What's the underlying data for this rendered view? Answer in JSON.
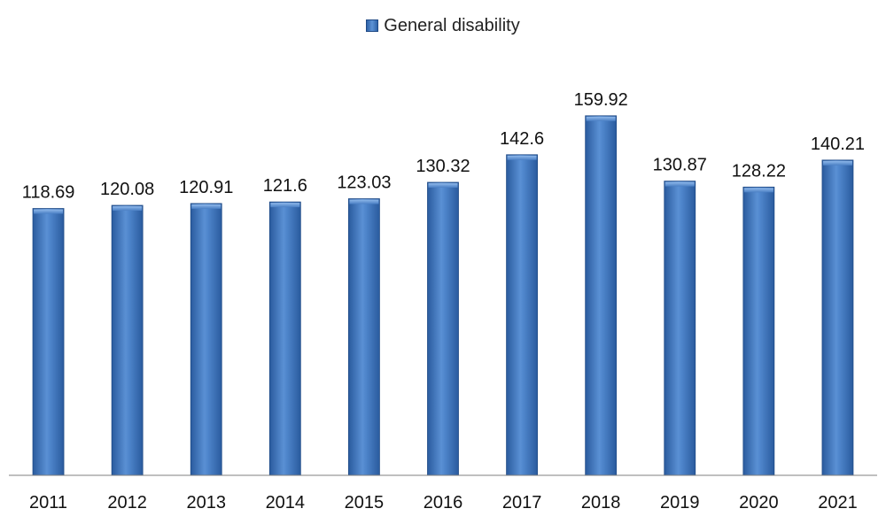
{
  "chart_data": {
    "type": "bar",
    "categories": [
      "2011",
      "2012",
      "2013",
      "2014",
      "2015",
      "2016",
      "2017",
      "2018",
      "2019",
      "2020",
      "2021"
    ],
    "series": [
      {
        "name": "General disability",
        "values": [
          118.69,
          120.08,
          120.91,
          121.6,
          123.03,
          130.32,
          142.6,
          159.92,
          130.87,
          128.22,
          140.21
        ],
        "labels": [
          "118.69",
          "120.08",
          "120.91",
          "121.6",
          "123.03",
          "130.32",
          "142.6",
          "159.92",
          "130.87",
          "128.22",
          "140.21"
        ],
        "color": "#3a70b8"
      }
    ],
    "title": "",
    "xlabel": "",
    "ylabel": "",
    "ylim": [
      0,
      180
    ],
    "grid": false,
    "legend": "top-center",
    "data_labels": true
  }
}
